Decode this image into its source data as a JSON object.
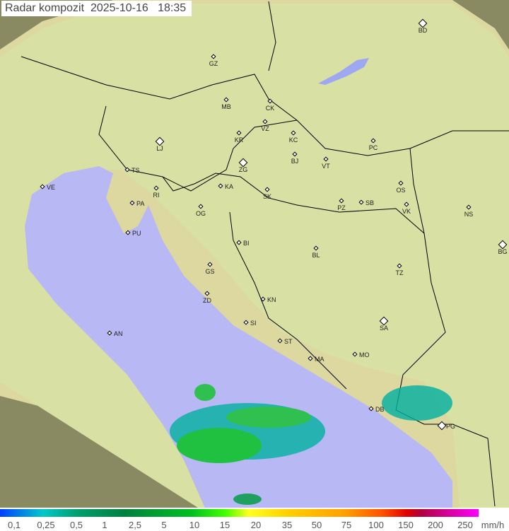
{
  "header": {
    "title": "Radar kompozit",
    "date": "2025-10-16",
    "time": "18:35"
  },
  "map": {
    "cities": [
      "GZ",
      "BD",
      "MB",
      "CK",
      "VZ",
      "KR",
      "KC",
      "PC",
      "LJ",
      "ZG",
      "BJ",
      "VT",
      "TS",
      "VE",
      "KA",
      "SK",
      "OS",
      "RI",
      "PA",
      "OG",
      "PZ",
      "SB",
      "VK",
      "NS",
      "PU",
      "BI",
      "BL",
      "BG",
      "GS",
      "TZ",
      "ZD",
      "KN",
      "SA",
      "SI",
      "AN",
      "ST",
      "MO",
      "MA",
      "DB",
      "PG"
    ],
    "colors": {
      "sea": "#b8b8f4",
      "land": "#e4e0a8",
      "outside": "#8c8c60",
      "rain_light": "#00b0a0",
      "rain_mid": "#20c040"
    }
  },
  "legend": {
    "unit": "mm/h",
    "ticks": [
      "0,1",
      "0,25",
      "0,5",
      "1",
      "2,5",
      "5",
      "10",
      "15",
      "20",
      "35",
      "50",
      "75",
      "100",
      "150",
      "200",
      "250"
    ]
  }
}
